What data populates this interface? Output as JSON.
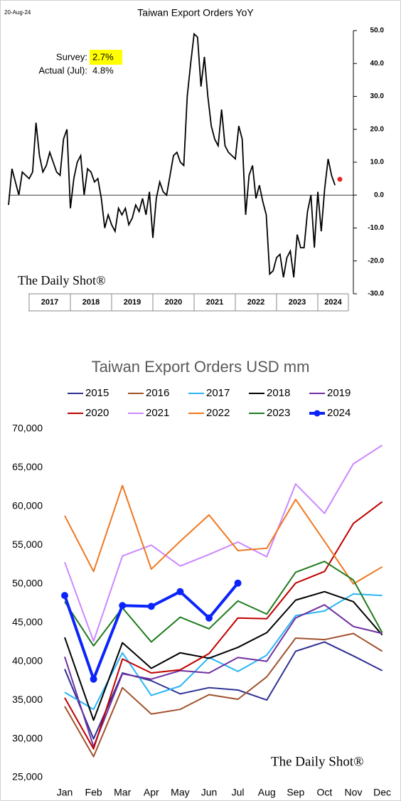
{
  "chart_data": [
    {
      "type": "line",
      "date": "20-Aug-24",
      "title": "Taiwan Export Orders YoY",
      "years": [
        null,
        "2017",
        "2018",
        "2019",
        "2020",
        "2021",
        "2022",
        "2023",
        "2024"
      ],
      "values": [
        -3,
        8,
        4,
        0,
        7,
        6,
        5,
        7,
        22,
        12,
        7,
        9,
        13,
        10,
        7,
        6,
        17,
        20,
        -4,
        5,
        10,
        12,
        0,
        8,
        7,
        4,
        5,
        -1,
        -10,
        -6,
        -9,
        -11,
        -4,
        -6,
        -4,
        -9,
        -7,
        -3,
        -5,
        -1,
        -6,
        1,
        -13,
        -1,
        4,
        1,
        0,
        6,
        12,
        13,
        10,
        9,
        30,
        40,
        49,
        48,
        33,
        42,
        30,
        21,
        17,
        15,
        26,
        15,
        13,
        12,
        11,
        21,
        17,
        -6,
        6,
        9,
        -1,
        3,
        -2,
        -6,
        -24,
        -23,
        -19,
        -18,
        -25,
        -19,
        -17,
        -25,
        -12,
        -16,
        -16,
        -5,
        0,
        -16,
        1,
        -11,
        2,
        11,
        6,
        3
      ],
      "color": "#000000",
      "survey": {
        "label": "Survey:",
        "value_label": "2.7%"
      },
      "actual": {
        "label": "Actual (Jul):",
        "value": 4.8,
        "value_label": "4.8%",
        "color": "#e8251f"
      },
      "ylim": [
        -30,
        50
      ],
      "yticks": [
        {
          "value": 50,
          "label": "50.0"
        },
        {
          "value": 40,
          "label": "40.0"
        },
        {
          "value": 30,
          "label": "30.0"
        },
        {
          "value": 20,
          "label": "20.0"
        },
        {
          "value": 10,
          "label": "10.0"
        },
        {
          "value": 0,
          "label": "0.0"
        },
        {
          "value": -10,
          "label": "-10.0"
        },
        {
          "value": -20,
          "label": "-20.0"
        },
        {
          "value": -30,
          "label": "-30.0"
        }
      ],
      "zero_line": true,
      "watermark": "The Daily Shot®"
    },
    {
      "type": "line",
      "title": "Taiwan Export Orders USD mm",
      "categories": [
        "Jan",
        "Feb",
        "Mar",
        "Apr",
        "May",
        "Jun",
        "Jul",
        "Aug",
        "Sep",
        "Oct",
        "Nov",
        "Dec"
      ],
      "series": [
        {
          "name": "2015",
          "color": "#2e3192",
          "values": [
            39000,
            30000,
            38500,
            37500,
            35800,
            36600,
            36300,
            35000,
            41300,
            42500,
            40700,
            38800
          ]
        },
        {
          "name": "2016",
          "color": "#a0522d",
          "values": [
            34200,
            27700,
            36600,
            33200,
            33800,
            35700,
            35100,
            38000,
            43000,
            42800,
            43600,
            41300
          ]
        },
        {
          "name": "2017",
          "color": "#29b6f6",
          "values": [
            36000,
            33800,
            41100,
            35600,
            36800,
            40500,
            38700,
            40800,
            45900,
            46500,
            48700,
            48500
          ]
        },
        {
          "name": "2018",
          "color": "#000000",
          "values": [
            43100,
            32400,
            42400,
            39100,
            41100,
            40400,
            41800,
            43700,
            47900,
            49000,
            47700,
            43400
          ]
        },
        {
          "name": "2019",
          "color": "#7030a0",
          "values": [
            40600,
            29000,
            38400,
            37700,
            38800,
            38500,
            40500,
            40000,
            45600,
            47300,
            44500,
            43600
          ]
        },
        {
          "name": "2020",
          "color": "#c00000",
          "values": [
            35300,
            28700,
            40300,
            38500,
            38900,
            41000,
            45600,
            45500,
            50100,
            51600,
            57800,
            60600
          ]
        },
        {
          "name": "2021",
          "color": "#cc88ff",
          "values": [
            52800,
            42600,
            53600,
            55000,
            52300,
            53800,
            55400,
            53500,
            62900,
            59100,
            65500,
            67900
          ]
        },
        {
          "name": "2022",
          "color": "#f07820",
          "values": [
            58800,
            51600,
            62700,
            51900,
            55500,
            58900,
            54300,
            54600,
            60900,
            55500,
            50000,
            52200
          ]
        },
        {
          "name": "2023",
          "color": "#1e7b1e",
          "values": [
            47700,
            42000,
            46900,
            42500,
            45700,
            44200,
            47800,
            46100,
            51500,
            52900,
            50500,
            43700
          ]
        },
        {
          "name": "2024",
          "color": "#0b24fb",
          "marker": true,
          "values": [
            48500,
            37700,
            47200,
            47100,
            49000,
            45600,
            50100,
            null,
            null,
            null,
            null,
            null
          ]
        }
      ],
      "ylim": [
        25000,
        70000
      ],
      "yticks": [
        {
          "value": 70000,
          "label": "70,000"
        },
        {
          "value": 65000,
          "label": "65,000"
        },
        {
          "value": 60000,
          "label": "60,000"
        },
        {
          "value": 55000,
          "label": "55,000"
        },
        {
          "value": 50000,
          "label": "50,000"
        },
        {
          "value": 45000,
          "label": "45,000"
        },
        {
          "value": 40000,
          "label": "40,000"
        },
        {
          "value": 35000,
          "label": "35,000"
        },
        {
          "value": 30000,
          "label": "30,000"
        },
        {
          "value": 25000,
          "label": "25,000"
        }
      ],
      "watermark": "The Daily Shot®"
    }
  ]
}
